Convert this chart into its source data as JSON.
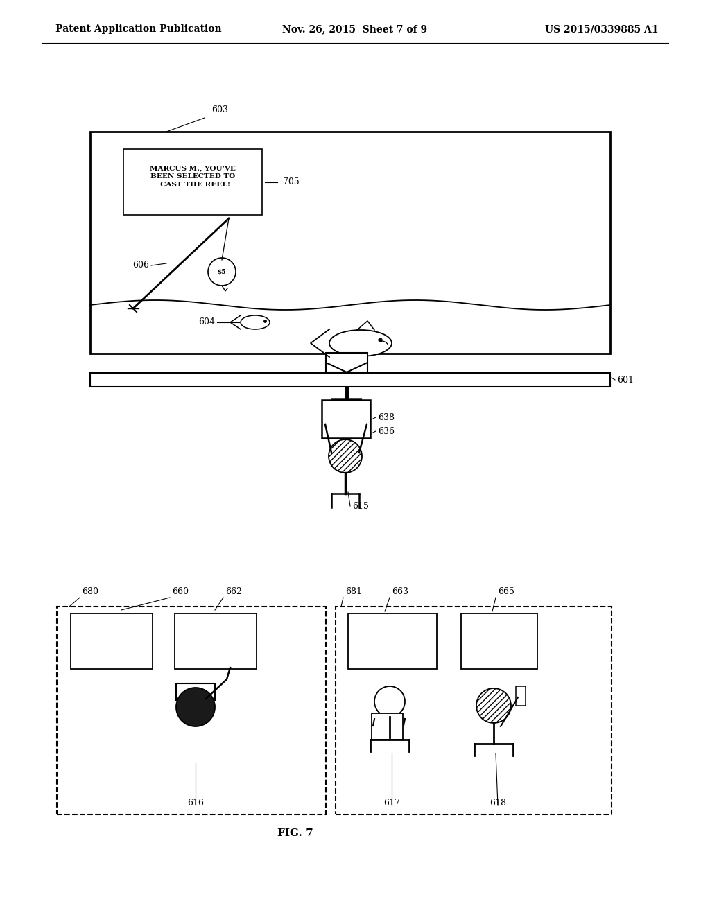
{
  "bg_color": "#ffffff",
  "header_left": "Patent Application Publication",
  "header_mid": "Nov. 26, 2015  Sheet 7 of 9",
  "header_right": "US 2015/0339885 A1",
  "fig_label": "FIG. 7"
}
